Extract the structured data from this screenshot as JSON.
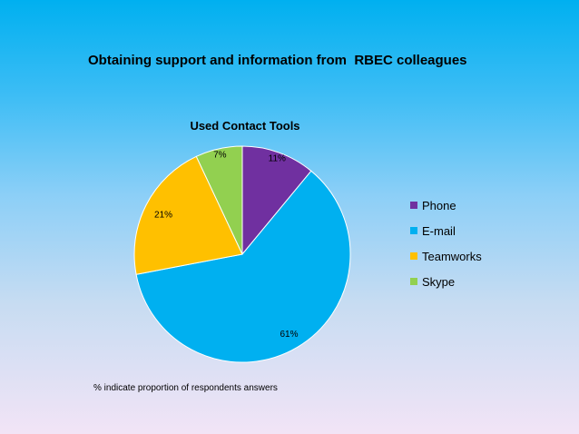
{
  "slide": {
    "title": "Obtaining support and information from  RBEC colleagues",
    "footnote": "% indicate proportion of respondents answers"
  },
  "chart_data": {
    "type": "pie",
    "title": "Used Contact Tools",
    "categories": [
      "Phone",
      "E-mail",
      "Teamworks",
      "Skype"
    ],
    "values": [
      11,
      61,
      21,
      7
    ],
    "labels": [
      "11%",
      "61%",
      "21%",
      "7%"
    ],
    "colors": [
      "#7030a0",
      "#00b0f0",
      "#ffc000",
      "#92d050"
    ],
    "legend_position": "right",
    "start_angle": "12 o'clock",
    "direction": "clockwise"
  }
}
